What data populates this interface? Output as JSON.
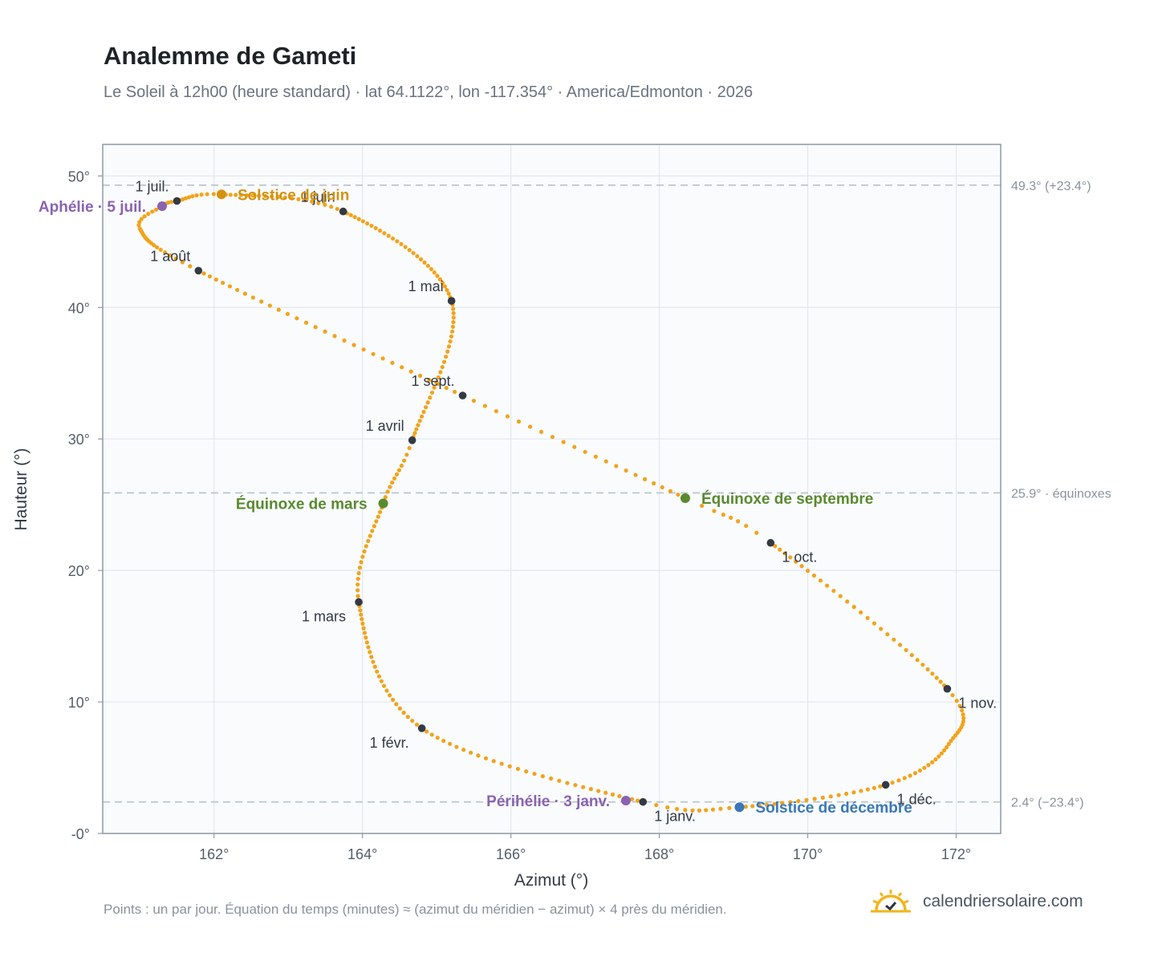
{
  "header": {
    "title": "Analemme de Gameti",
    "subtitle": "Le Soleil à 12h00 (heure standard) · lat 64.1122°, lon -117.354° · America/Edmonton · 2026"
  },
  "footer": {
    "note": "Points : un par jour. Équation du temps (minutes) ≈ (azimut du méridien − azimut) × 4 près du méridien.",
    "brand": "calendriersolaire.com"
  },
  "colors": {
    "curve": "#f2a31b",
    "month_marker": "#333a44",
    "solstice_june": "#d4920f",
    "solstice_december": "#3a78b8",
    "equinox": "#5a8a2e",
    "apsis": "#8a63b0",
    "reference_line": "#b8c2cc",
    "plot_bg": "#f9fbfd",
    "grid": "#e3e8ee",
    "frame": "#8e99a6"
  },
  "icons": {
    "brand": "sun-check-icon"
  },
  "chart_data": {
    "type": "scatter",
    "xlabel": "Azimut (°)",
    "ylabel": "Hauteur (°)",
    "xlim": [
      160.5,
      172.6
    ],
    "ylim": [
      0,
      52.4
    ],
    "x_ticks": [
      {
        "value": 162,
        "label": "162°"
      },
      {
        "value": 164,
        "label": "164°"
      },
      {
        "value": 166,
        "label": "166°"
      },
      {
        "value": 168,
        "label": "168°"
      },
      {
        "value": 170,
        "label": "170°"
      },
      {
        "value": 172,
        "label": "172°"
      }
    ],
    "y_ticks": [
      {
        "value": 0,
        "label": "-0°"
      },
      {
        "value": 10,
        "label": "10°"
      },
      {
        "value": 20,
        "label": "20°"
      },
      {
        "value": 30,
        "label": "30°"
      },
      {
        "value": 40,
        "label": "40°"
      },
      {
        "value": 50,
        "label": "50°"
      }
    ],
    "grid": true,
    "reference_lines": [
      {
        "y": 49.3,
        "label": "49.3° (+23.4°)"
      },
      {
        "y": 25.9,
        "label": "25.9° · équinoxes"
      },
      {
        "y": 2.4,
        "label": "2.4° (−23.4°)"
      }
    ],
    "daily_points": {
      "count": 365,
      "anchors": [
        {
          "doy": 1,
          "az": 167.78,
          "alt": 2.4
        },
        {
          "doy": 32,
          "az": 164.8,
          "alt": 8.0
        },
        {
          "doy": 60,
          "az": 163.95,
          "alt": 17.6
        },
        {
          "doy": 79,
          "az": 164.28,
          "alt": 25.1
        },
        {
          "doy": 91,
          "az": 164.67,
          "alt": 29.9
        },
        {
          "doy": 121,
          "az": 165.2,
          "alt": 40.5
        },
        {
          "doy": 152,
          "az": 163.74,
          "alt": 47.3
        },
        {
          "doy": 172,
          "az": 162.1,
          "alt": 48.6
        },
        {
          "doy": 182,
          "az": 161.5,
          "alt": 48.1
        },
        {
          "doy": 186,
          "az": 161.3,
          "alt": 47.7
        },
        {
          "doy": 195,
          "az": 161.0,
          "alt": 46.0
        },
        {
          "doy": 213,
          "az": 161.79,
          "alt": 42.8
        },
        {
          "doy": 244,
          "az": 165.35,
          "alt": 33.3
        },
        {
          "doy": 266,
          "az": 168.35,
          "alt": 25.5
        },
        {
          "doy": 274,
          "az": 169.5,
          "alt": 22.1
        },
        {
          "doy": 305,
          "az": 171.88,
          "alt": 11.0
        },
        {
          "doy": 320,
          "az": 171.9,
          "alt": 6.8
        },
        {
          "doy": 335,
          "az": 171.05,
          "alt": 3.7
        },
        {
          "doy": 355,
          "az": 169.08,
          "alt": 2.0
        },
        {
          "doy": 366,
          "az": 167.78,
          "alt": 2.4
        }
      ]
    },
    "month_markers": [
      {
        "label": "1 janv.",
        "az": 167.78,
        "alt": 2.4,
        "pos": "below-right"
      },
      {
        "label": "1 févr.",
        "az": 164.8,
        "alt": 8.0,
        "pos": "below-left"
      },
      {
        "label": "1 mars",
        "az": 163.95,
        "alt": 17.6,
        "pos": "below-left"
      },
      {
        "label": "1 avril",
        "az": 164.67,
        "alt": 29.9,
        "pos": "above-left"
      },
      {
        "label": "1 mai",
        "az": 165.2,
        "alt": 40.5,
        "pos": "above-left"
      },
      {
        "label": "1 juin",
        "az": 163.74,
        "alt": 47.3,
        "pos": "above-left"
      },
      {
        "label": "1 juil.",
        "az": 161.5,
        "alt": 48.1,
        "pos": "above-left"
      },
      {
        "label": "1 août",
        "az": 161.79,
        "alt": 42.8,
        "pos": "above-left"
      },
      {
        "label": "1 sept.",
        "az": 165.35,
        "alt": 33.3,
        "pos": "above-left"
      },
      {
        "label": "1 oct.",
        "az": 169.5,
        "alt": 22.1,
        "pos": "below-right"
      },
      {
        "label": "1 nov.",
        "az": 171.88,
        "alt": 11.0,
        "pos": "below-right"
      },
      {
        "label": "1 déc.",
        "az": 171.05,
        "alt": 3.7,
        "pos": "below-right"
      }
    ],
    "events": [
      {
        "label": "Solstice de juin",
        "az": 162.1,
        "alt": 48.6,
        "kind": "solstice_june",
        "side": "right"
      },
      {
        "label": "Solstice de décembre",
        "az": 169.08,
        "alt": 2.0,
        "kind": "solstice_december",
        "side": "right"
      },
      {
        "label": "Équinoxe de mars",
        "az": 164.28,
        "alt": 25.1,
        "kind": "equinox",
        "side": "left"
      },
      {
        "label": "Équinoxe de septembre",
        "az": 168.35,
        "alt": 25.5,
        "kind": "equinox",
        "side": "right"
      },
      {
        "label": "Aphélie · 5 juil.",
        "az": 161.3,
        "alt": 47.7,
        "kind": "apsis",
        "side": "left"
      },
      {
        "label": "Périhélie · 3 janv.",
        "az": 167.55,
        "alt": 2.5,
        "kind": "apsis",
        "side": "left"
      }
    ]
  }
}
